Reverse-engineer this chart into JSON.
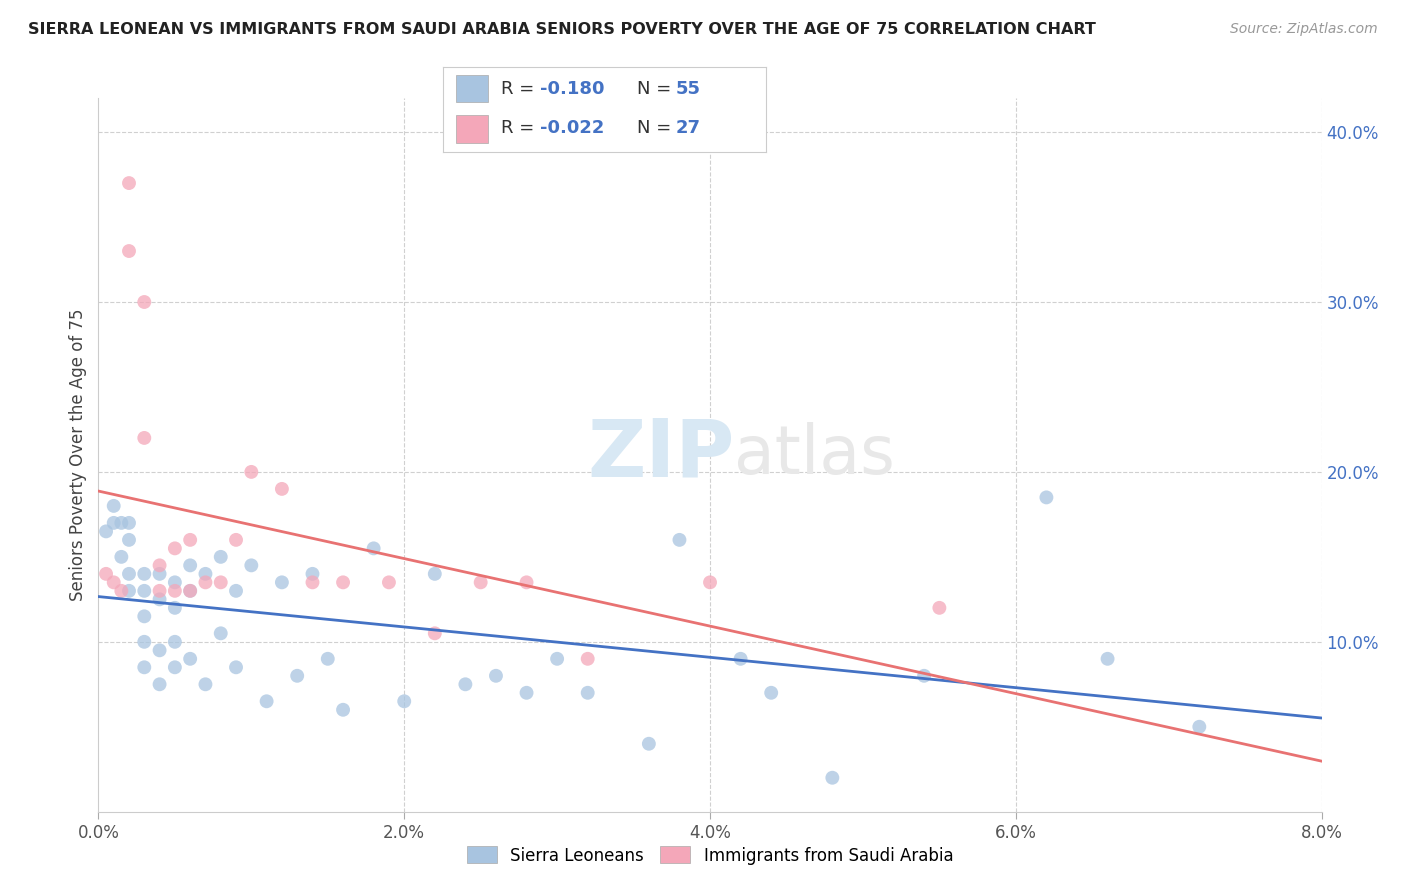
{
  "title": "SIERRA LEONEAN VS IMMIGRANTS FROM SAUDI ARABIA SENIORS POVERTY OVER THE AGE OF 75 CORRELATION CHART",
  "source": "Source: ZipAtlas.com",
  "ylabel": "Seniors Poverty Over the Age of 75",
  "xlim": [
    0.0,
    0.08
  ],
  "ylim": [
    0.0,
    0.42
  ],
  "xticks": [
    0.0,
    0.02,
    0.04,
    0.06,
    0.08
  ],
  "xtick_labels": [
    "0.0%",
    "2.0%",
    "4.0%",
    "6.0%",
    "8.0%"
  ],
  "yticks_right": [
    0.1,
    0.2,
    0.3,
    0.4
  ],
  "ytick_labels_right": [
    "10.0%",
    "20.0%",
    "30.0%",
    "40.0%"
  ],
  "grid_color": "#d0d0d0",
  "background_color": "#ffffff",
  "watermark_zip": "ZIP",
  "watermark_atlas": "atlas",
  "color_blue": "#a8c4e0",
  "color_pink": "#f4a7b9",
  "line_color_blue": "#4472c4",
  "line_color_pink": "#e87272",
  "R_color": "#4472c4",
  "R_color_pink": "#e05070",
  "legend_label1": "Sierra Leoneans",
  "legend_label2": "Immigrants from Saudi Arabia",
  "sierra_x": [
    0.0005,
    0.001,
    0.001,
    0.0015,
    0.0015,
    0.002,
    0.002,
    0.002,
    0.002,
    0.003,
    0.003,
    0.003,
    0.003,
    0.003,
    0.004,
    0.004,
    0.004,
    0.004,
    0.005,
    0.005,
    0.005,
    0.005,
    0.006,
    0.006,
    0.006,
    0.007,
    0.007,
    0.008,
    0.008,
    0.009,
    0.009,
    0.01,
    0.011,
    0.012,
    0.013,
    0.014,
    0.015,
    0.016,
    0.018,
    0.02,
    0.022,
    0.024,
    0.026,
    0.028,
    0.03,
    0.032,
    0.036,
    0.038,
    0.042,
    0.044,
    0.048,
    0.054,
    0.062,
    0.066,
    0.072
  ],
  "sierra_y": [
    0.165,
    0.18,
    0.17,
    0.17,
    0.15,
    0.17,
    0.14,
    0.16,
    0.13,
    0.14,
    0.13,
    0.115,
    0.1,
    0.085,
    0.14,
    0.125,
    0.095,
    0.075,
    0.135,
    0.12,
    0.1,
    0.085,
    0.145,
    0.13,
    0.09,
    0.14,
    0.075,
    0.15,
    0.105,
    0.13,
    0.085,
    0.145,
    0.065,
    0.135,
    0.08,
    0.14,
    0.09,
    0.06,
    0.155,
    0.065,
    0.14,
    0.075,
    0.08,
    0.07,
    0.09,
    0.07,
    0.04,
    0.16,
    0.09,
    0.07,
    0.02,
    0.08,
    0.185,
    0.09,
    0.05
  ],
  "saudi_x": [
    0.0005,
    0.001,
    0.0015,
    0.002,
    0.002,
    0.003,
    0.003,
    0.004,
    0.004,
    0.005,
    0.005,
    0.006,
    0.006,
    0.007,
    0.008,
    0.009,
    0.01,
    0.012,
    0.014,
    0.016,
    0.019,
    0.022,
    0.025,
    0.028,
    0.032,
    0.04,
    0.055
  ],
  "saudi_y": [
    0.14,
    0.135,
    0.13,
    0.37,
    0.33,
    0.3,
    0.22,
    0.145,
    0.13,
    0.155,
    0.13,
    0.16,
    0.13,
    0.135,
    0.135,
    0.16,
    0.2,
    0.19,
    0.135,
    0.135,
    0.135,
    0.105,
    0.135,
    0.135,
    0.09,
    0.135,
    0.12
  ]
}
